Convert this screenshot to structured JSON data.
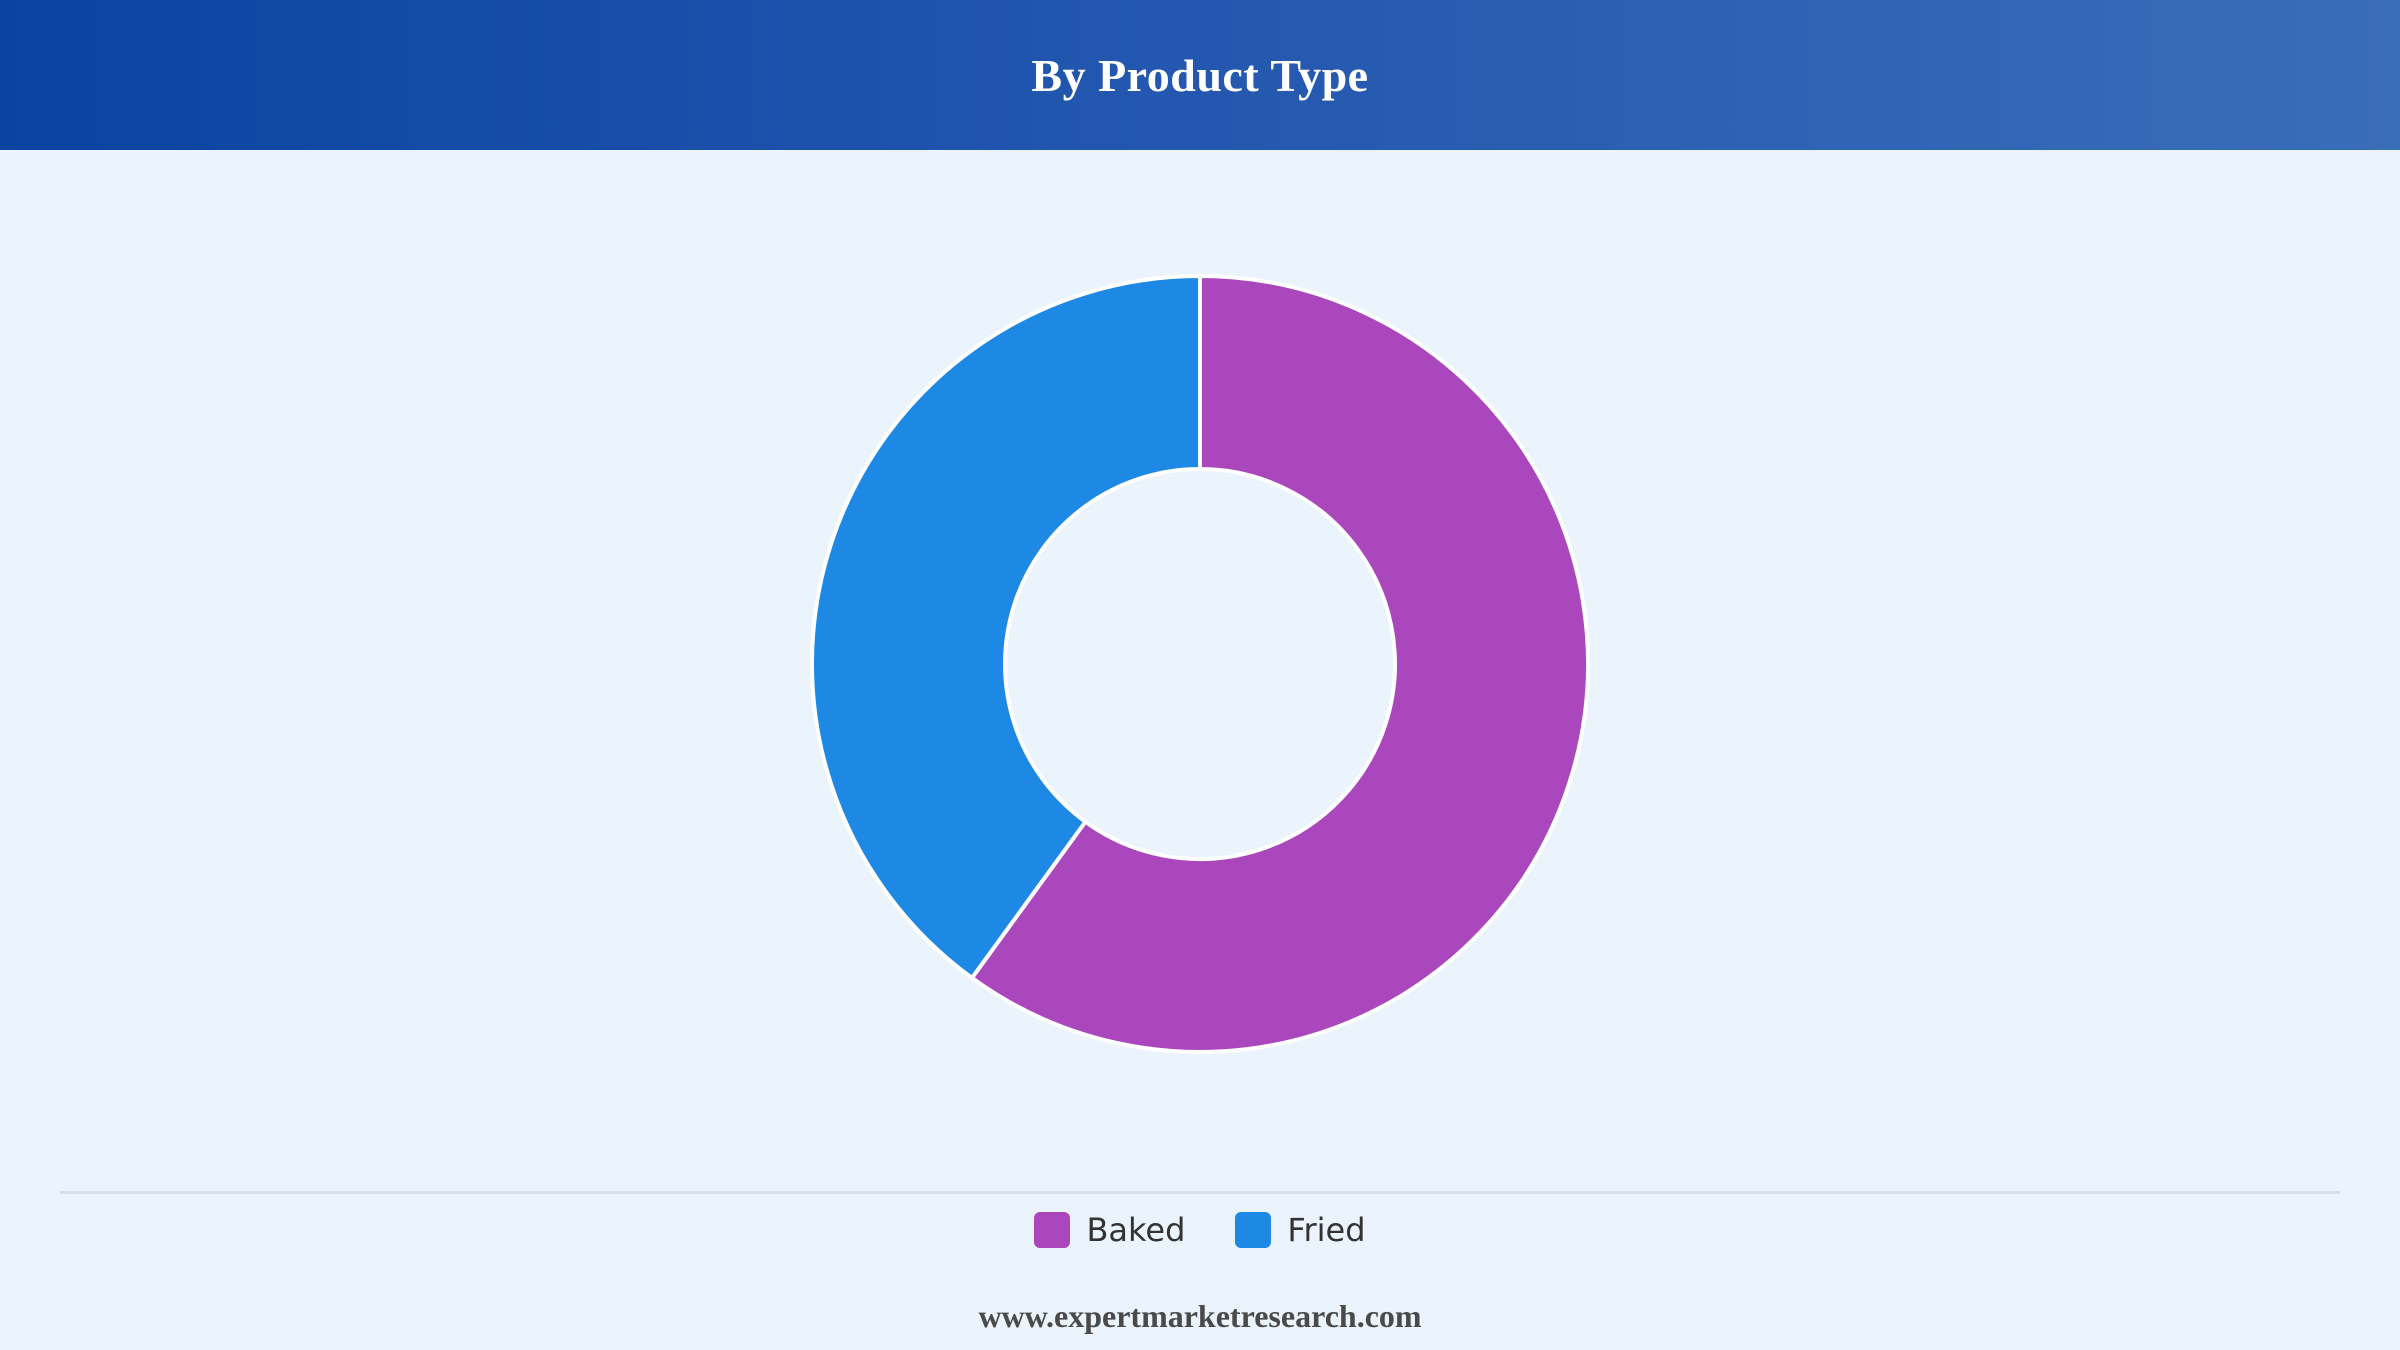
{
  "header": {
    "title": "By Product Type"
  },
  "chart_data": {
    "type": "pie",
    "style": "donut",
    "title": "By Product Type",
    "categories": [
      "Baked",
      "Fried"
    ],
    "values": [
      60,
      40
    ],
    "colors": [
      "#ab47bc",
      "#1e88e5"
    ],
    "legend_position": "bottom",
    "legend": [
      "Baked",
      "Fried"
    ]
  },
  "legend": {
    "items": [
      {
        "label": "Baked",
        "color": "#ab47bc"
      },
      {
        "label": "Fried",
        "color": "#1e88e5"
      }
    ]
  },
  "footer": {
    "source": "www.expertmarketresearch.com"
  }
}
